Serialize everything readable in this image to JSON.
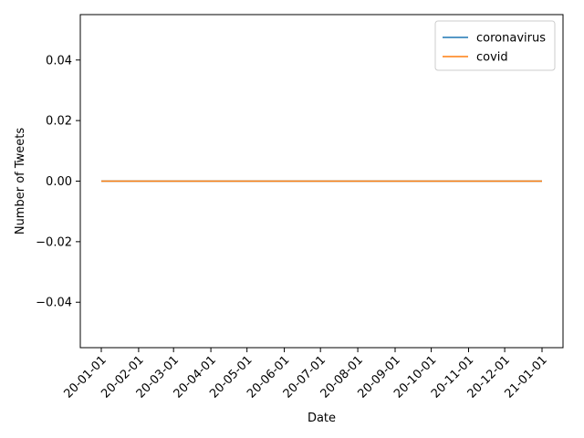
{
  "chart_data": {
    "type": "line",
    "title": "",
    "xlabel": "Date",
    "ylabel": "Number of Tweets",
    "x": [
      "20-01-01",
      "20-02-01",
      "20-03-01",
      "20-04-01",
      "20-05-01",
      "20-06-01",
      "20-07-01",
      "20-08-01",
      "20-09-01",
      "20-10-01",
      "20-11-01",
      "20-12-01",
      "21-01-01"
    ],
    "x_dates": [
      "2020-01-01",
      "2020-02-01",
      "2020-03-01",
      "2020-04-01",
      "2020-05-01",
      "2020-06-01",
      "2020-07-01",
      "2020-08-01",
      "2020-09-01",
      "2020-10-01",
      "2020-11-01",
      "2020-12-01",
      "2021-01-01"
    ],
    "series": [
      {
        "name": "coronavirus",
        "color": "#1f77b4",
        "values": [
          0,
          0,
          0,
          0,
          0,
          0,
          0,
          0,
          0,
          0,
          0,
          0,
          0
        ]
      },
      {
        "name": "covid",
        "color": "#ff7f0e",
        "values": [
          0,
          0,
          0,
          0,
          0,
          0,
          0,
          0,
          0,
          0,
          0,
          0,
          0
        ]
      }
    ],
    "ylim": [
      -0.055,
      0.055
    ],
    "yticks": [
      -0.04,
      -0.02,
      0.0,
      0.02,
      0.04
    ],
    "ytick_labels": [
      "−0.04",
      "−0.02",
      "0.00",
      "0.02",
      "0.04"
    ],
    "grid": false,
    "legend": "top-right"
  }
}
